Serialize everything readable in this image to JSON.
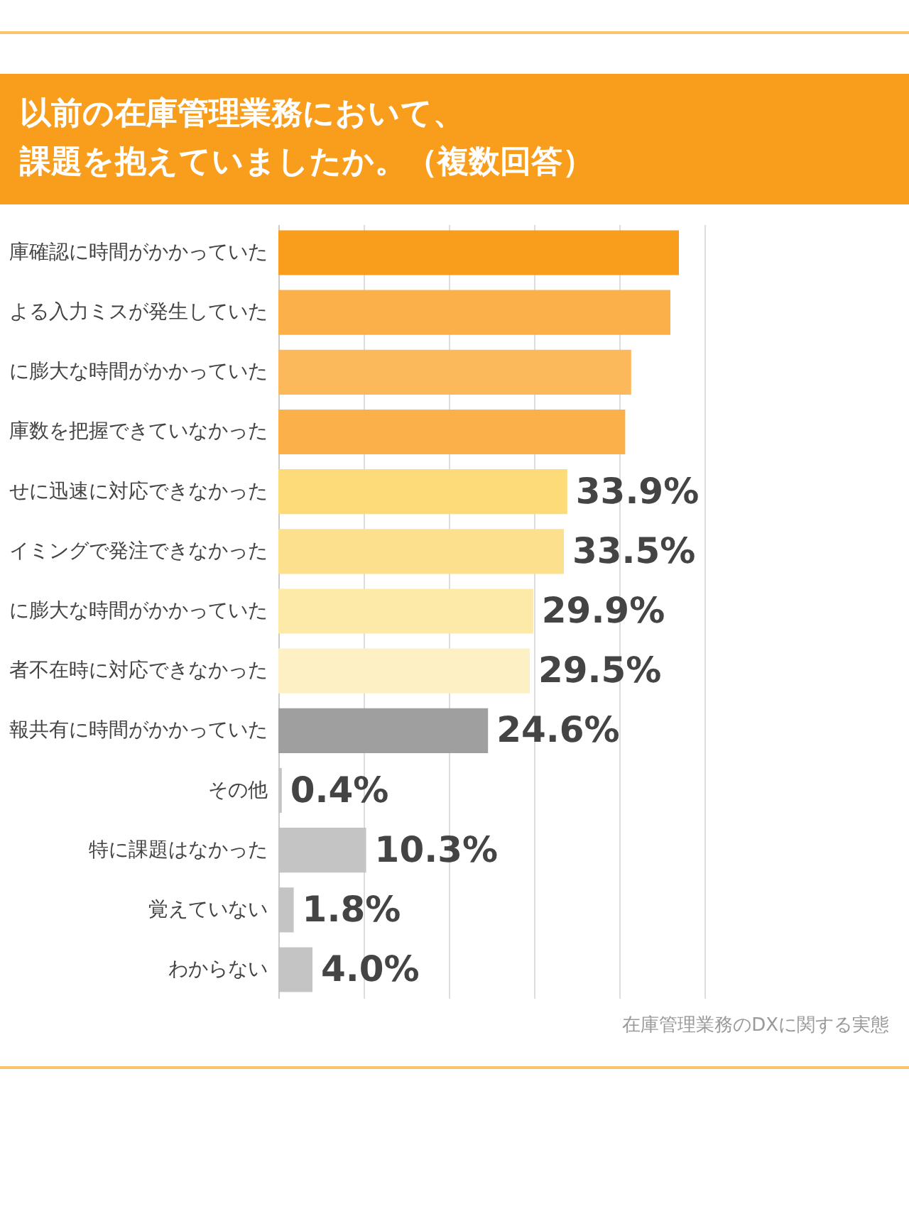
{
  "chart_data": {
    "type": "bar",
    "orientation": "horizontal",
    "title": "以前の在庫管理業務において、",
    "subtitle": "課題を抱えていましたか。（複数回答）",
    "categories": [
      "庫確認に時間がかかっていた",
      "よる入力ミスが発生していた",
      "に膨大な時間がかかっていた",
      "庫数を把握できていなかった",
      "せに迅速に対応できなかった",
      "イミングで発注できなかった",
      "に膨大な時間がかかっていた",
      "者不在時に対応できなかった",
      "報共有に時間がかかっていた",
      "その他",
      "特に課題はなかった",
      "覚えていない",
      "わからない"
    ],
    "values": [
      47.0,
      46.0,
      41.4,
      40.7,
      33.9,
      33.5,
      29.9,
      29.5,
      24.6,
      0.4,
      10.3,
      1.8,
      4.0
    ],
    "colors": [
      "#f99d1c",
      "#fbb04a",
      "#fcb95c",
      "#fbb04a",
      "#fcdb78",
      "#fde08d",
      "#fde9a8",
      "#fdf0c4",
      "#9f9f9f",
      "#c4c4c4",
      "#c4c4c4",
      "#c4c4c4",
      "#c4c4c4"
    ],
    "value_labels": [
      null,
      null,
      null,
      null,
      "33.9%",
      "33.5%",
      "29.9%",
      "29.5%",
      "24.6%",
      "0.4%",
      "10.3%",
      "1.8%",
      "4.0%"
    ],
    "xlim": [
      0,
      50
    ],
    "xticks": [
      {
        "value": 0,
        "label": null
      },
      {
        "value": 10,
        "label": null
      },
      {
        "value": 20,
        "label": null
      },
      {
        "value": 30,
        "label": null
      },
      {
        "value": 40,
        "label": null
      },
      {
        "value": 50,
        "label": null
      }
    ],
    "grid": "x",
    "tick_labels": "y",
    "annotations": [
      "在庫管理業務のDXに関する実態"
    ]
  }
}
